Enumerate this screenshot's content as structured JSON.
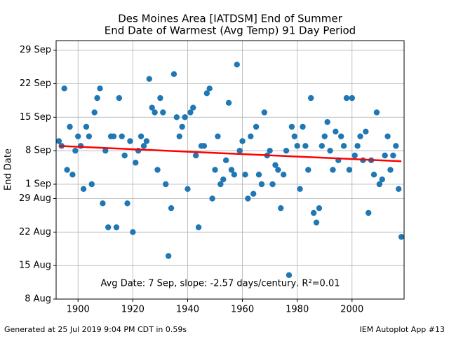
{
  "chart_data": {
    "type": "scatter",
    "title": "Des Moines Area [IATDSM] End of Summer",
    "subtitle": "End Date of Warmest (Avg Temp) 91 Day Period",
    "y_label": "End Date",
    "annotation": "Avg Date: 7 Sep, slope: -2.57 days/century, R²=0.01",
    "footer_left": "Generated at 25 Jul 2019 9:04 PM CDT in 0.59s",
    "footer_right": "IEM Autoplot App #13",
    "color": "#1f77b4",
    "grid": true,
    "xlim": [
      1892,
      2019
    ],
    "xticks": [
      1900,
      1920,
      1940,
      1960,
      1980,
      2000
    ],
    "ylim": [
      220,
      274
    ],
    "yticks": [
      {
        "value": 220,
        "label": "8 Aug"
      },
      {
        "value": 227,
        "label": "15 Aug"
      },
      {
        "value": 234,
        "label": "22 Aug"
      },
      {
        "value": 241,
        "label": "29 Aug"
      },
      {
        "value": 244,
        "label": "1 Sep"
      },
      {
        "value": 251,
        "label": "8 Sep"
      },
      {
        "value": 258,
        "label": "15 Sep"
      },
      {
        "value": 265,
        "label": "22 Sep"
      },
      {
        "value": 272,
        "label": "29 Sep"
      }
    ],
    "x": [
      1893,
      1894,
      1895,
      1896,
      1897,
      1898,
      1899,
      1900,
      1901,
      1902,
      1903,
      1904,
      1905,
      1906,
      1907,
      1908,
      1909,
      1910,
      1911,
      1912,
      1913,
      1914,
      1915,
      1916,
      1917,
      1918,
      1919,
      1920,
      1921,
      1922,
      1923,
      1924,
      1925,
      1926,
      1927,
      1928,
      1929,
      1930,
      1931,
      1932,
      1933,
      1934,
      1935,
      1936,
      1937,
      1938,
      1939,
      1940,
      1941,
      1942,
      1943,
      1944,
      1945,
      1946,
      1947,
      1948,
      1949,
      1950,
      1951,
      1952,
      1953,
      1954,
      1955,
      1956,
      1957,
      1958,
      1959,
      1960,
      1961,
      1962,
      1963,
      1964,
      1965,
      1966,
      1967,
      1968,
      1969,
      1970,
      1971,
      1972,
      1973,
      1974,
      1975,
      1976,
      1977,
      1978,
      1979,
      1980,
      1981,
      1982,
      1983,
      1984,
      1985,
      1986,
      1987,
      1988,
      1989,
      1990,
      1991,
      1992,
      1993,
      1994,
      1995,
      1996,
      1997,
      1998,
      1999,
      2000,
      2001,
      2002,
      2003,
      2004,
      2005,
      2006,
      2007,
      2008,
      2009,
      2010,
      2011,
      2012,
      2013,
      2014,
      2015,
      2016,
      2017,
      2018
    ],
    "values": [
      253,
      252,
      264,
      247,
      256,
      246,
      251,
      254,
      252,
      243,
      256,
      254,
      244,
      259,
      262,
      264,
      240,
      251,
      235,
      254,
      254,
      235,
      262,
      254,
      250,
      240,
      253,
      234,
      248.5,
      251,
      254,
      252,
      253,
      266,
      260,
      259,
      247,
      262,
      259,
      244,
      229,
      239,
      267,
      258,
      254,
      256,
      258,
      243,
      259,
      260,
      250,
      235,
      252,
      252,
      263,
      264,
      241,
      247,
      254,
      244,
      245,
      249,
      261,
      247,
      246,
      269,
      251,
      253,
      246,
      241,
      254,
      242,
      256,
      246,
      244,
      259,
      250,
      251,
      244,
      248,
      247,
      239,
      246,
      251,
      225,
      256,
      254,
      252,
      243,
      256,
      252,
      247,
      262,
      238,
      236,
      239,
      252,
      254,
      257,
      251,
      247,
      255,
      249,
      254,
      252,
      262,
      247,
      262,
      250,
      252,
      254,
      249,
      255,
      238,
      249,
      246,
      259,
      244,
      245,
      250,
      254,
      247,
      250,
      252,
      243,
      233
    ],
    "trend": {
      "color": "#ff0000",
      "x": [
        1893,
        2018
      ],
      "values": [
        252,
        248.8
      ]
    }
  }
}
